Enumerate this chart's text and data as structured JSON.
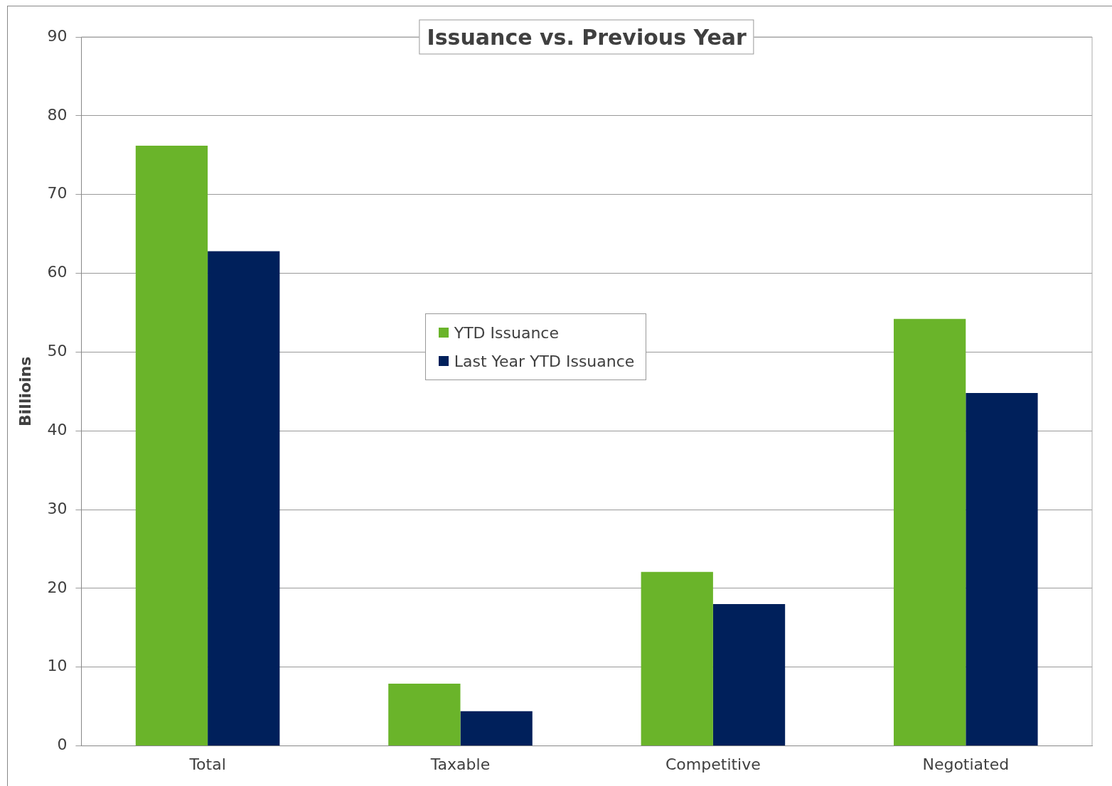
{
  "chart_data": {
    "type": "bar",
    "title": "Issuance vs. Previous Year",
    "ylabel": "Billioins",
    "categories": [
      "Total",
      "Taxable",
      "Competitive",
      "Negotiated"
    ],
    "series": [
      {
        "name": "YTD Issuance",
        "color": "#6ab42a",
        "values": [
          76.2,
          7.9,
          22.1,
          54.2
        ]
      },
      {
        "name": "Last Year YTD Issuance",
        "color": "#00205b",
        "values": [
          62.8,
          4.4,
          18.0,
          44.8
        ]
      }
    ],
    "ylim": [
      0,
      90
    ],
    "yticks": [
      0,
      10,
      20,
      30,
      40,
      50,
      60,
      70,
      80,
      90
    ],
    "grid": "y",
    "legend": "center"
  }
}
